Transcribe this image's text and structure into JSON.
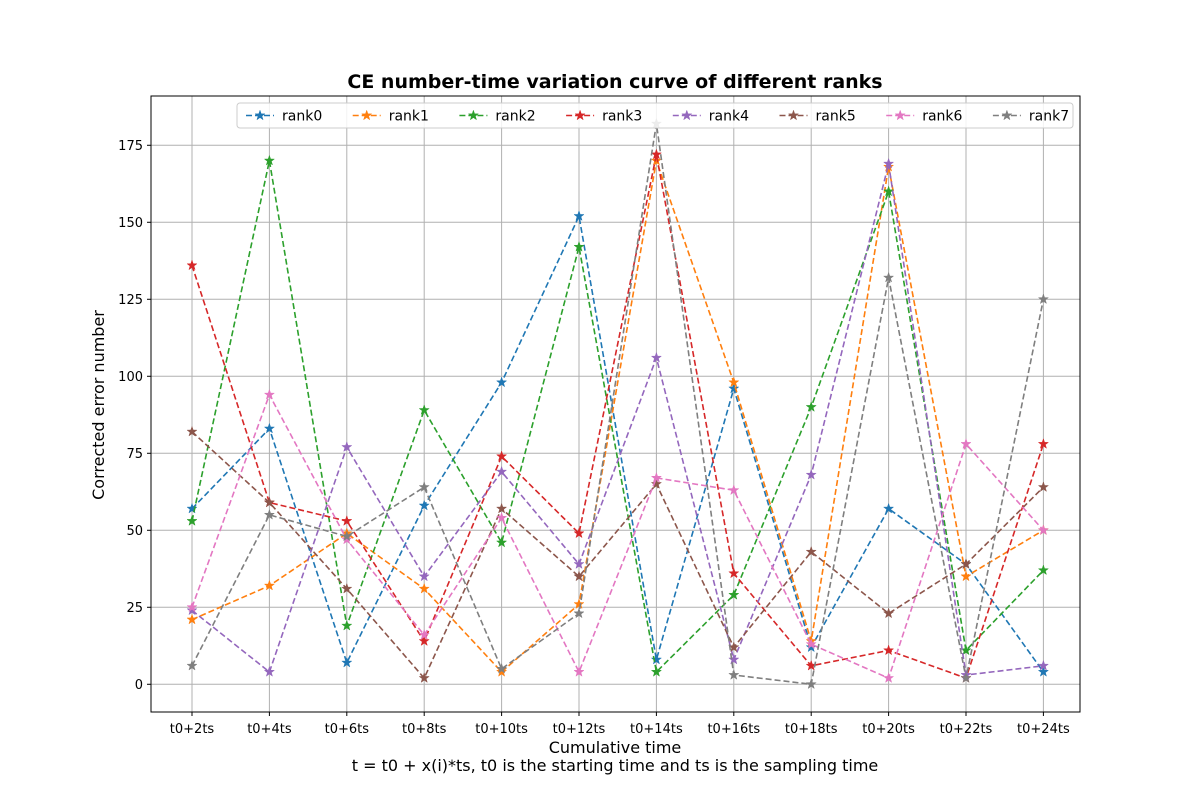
{
  "chart_data": {
    "type": "line",
    "title": "CE number-time variation curve of different ranks",
    "xlabel": "Cumulative time",
    "xlabel_note": "t = t0 + x(i)*ts, t0 is the starting time and ts is the sampling time",
    "ylabel": "Corrected error number",
    "categories": [
      "t0+2ts",
      "t0+4ts",
      "t0+6ts",
      "t0+8ts",
      "t0+10ts",
      "t0+12ts",
      "t0+14ts",
      "t0+16ts",
      "t0+18ts",
      "t0+20ts",
      "t0+22ts",
      "t0+24ts"
    ],
    "yticks": [
      0,
      25,
      50,
      75,
      100,
      125,
      150,
      175
    ],
    "ylim": [
      -9,
      191
    ],
    "grid": true,
    "legend_position": "top",
    "line_style": "dashed",
    "marker": "star",
    "series": [
      {
        "name": "rank0",
        "color": "#1f77b4",
        "values": [
          57,
          83,
          7,
          58,
          98,
          152,
          8,
          96,
          12,
          57,
          39,
          4
        ]
      },
      {
        "name": "rank1",
        "color": "#ff7f0e",
        "values": [
          21,
          32,
          49,
          31,
          4,
          26,
          170,
          98,
          14,
          168,
          35,
          50
        ]
      },
      {
        "name": "rank2",
        "color": "#2ca02c",
        "values": [
          53,
          170,
          19,
          89,
          46,
          142,
          4,
          29,
          90,
          160,
          11,
          37
        ]
      },
      {
        "name": "rank3",
        "color": "#d62728",
        "values": [
          136,
          59,
          53,
          14,
          74,
          49,
          172,
          36,
          6,
          11,
          2,
          78
        ]
      },
      {
        "name": "rank4",
        "color": "#9467bd",
        "values": [
          24,
          4,
          77,
          35,
          69,
          39,
          106,
          8,
          68,
          169,
          3,
          6
        ]
      },
      {
        "name": "rank5",
        "color": "#8c564b",
        "values": [
          82,
          59,
          31,
          2,
          57,
          35,
          65,
          12,
          43,
          23,
          39,
          64
        ]
      },
      {
        "name": "rank6",
        "color": "#e377c2",
        "values": [
          25,
          94,
          47,
          16,
          54,
          4,
          67,
          63,
          13,
          2,
          78,
          50
        ]
      },
      {
        "name": "rank7",
        "color": "#7f7f7f",
        "values": [
          6,
          55,
          48,
          64,
          5,
          23,
          182,
          3,
          0,
          132,
          2,
          125
        ]
      }
    ]
  }
}
